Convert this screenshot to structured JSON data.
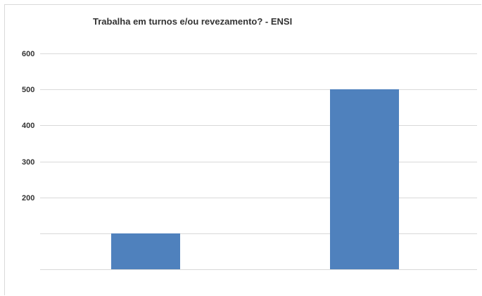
{
  "chart_data": {
    "type": "bar",
    "title": "Trabalha em turnos e/ou revezamento? - ENSI",
    "xlabel": "",
    "ylabel": "",
    "categories": [
      "",
      ""
    ],
    "values": [
      100,
      500
    ],
    "ylim": [
      0,
      600
    ],
    "yticks": [
      200,
      300,
      400,
      500,
      600
    ],
    "gridlines": [
      100,
      200,
      300,
      400,
      500,
      600
    ],
    "grid": true,
    "legend": "none",
    "bar_color": "#4f81bd",
    "grid_color": "#d9d9d9"
  }
}
